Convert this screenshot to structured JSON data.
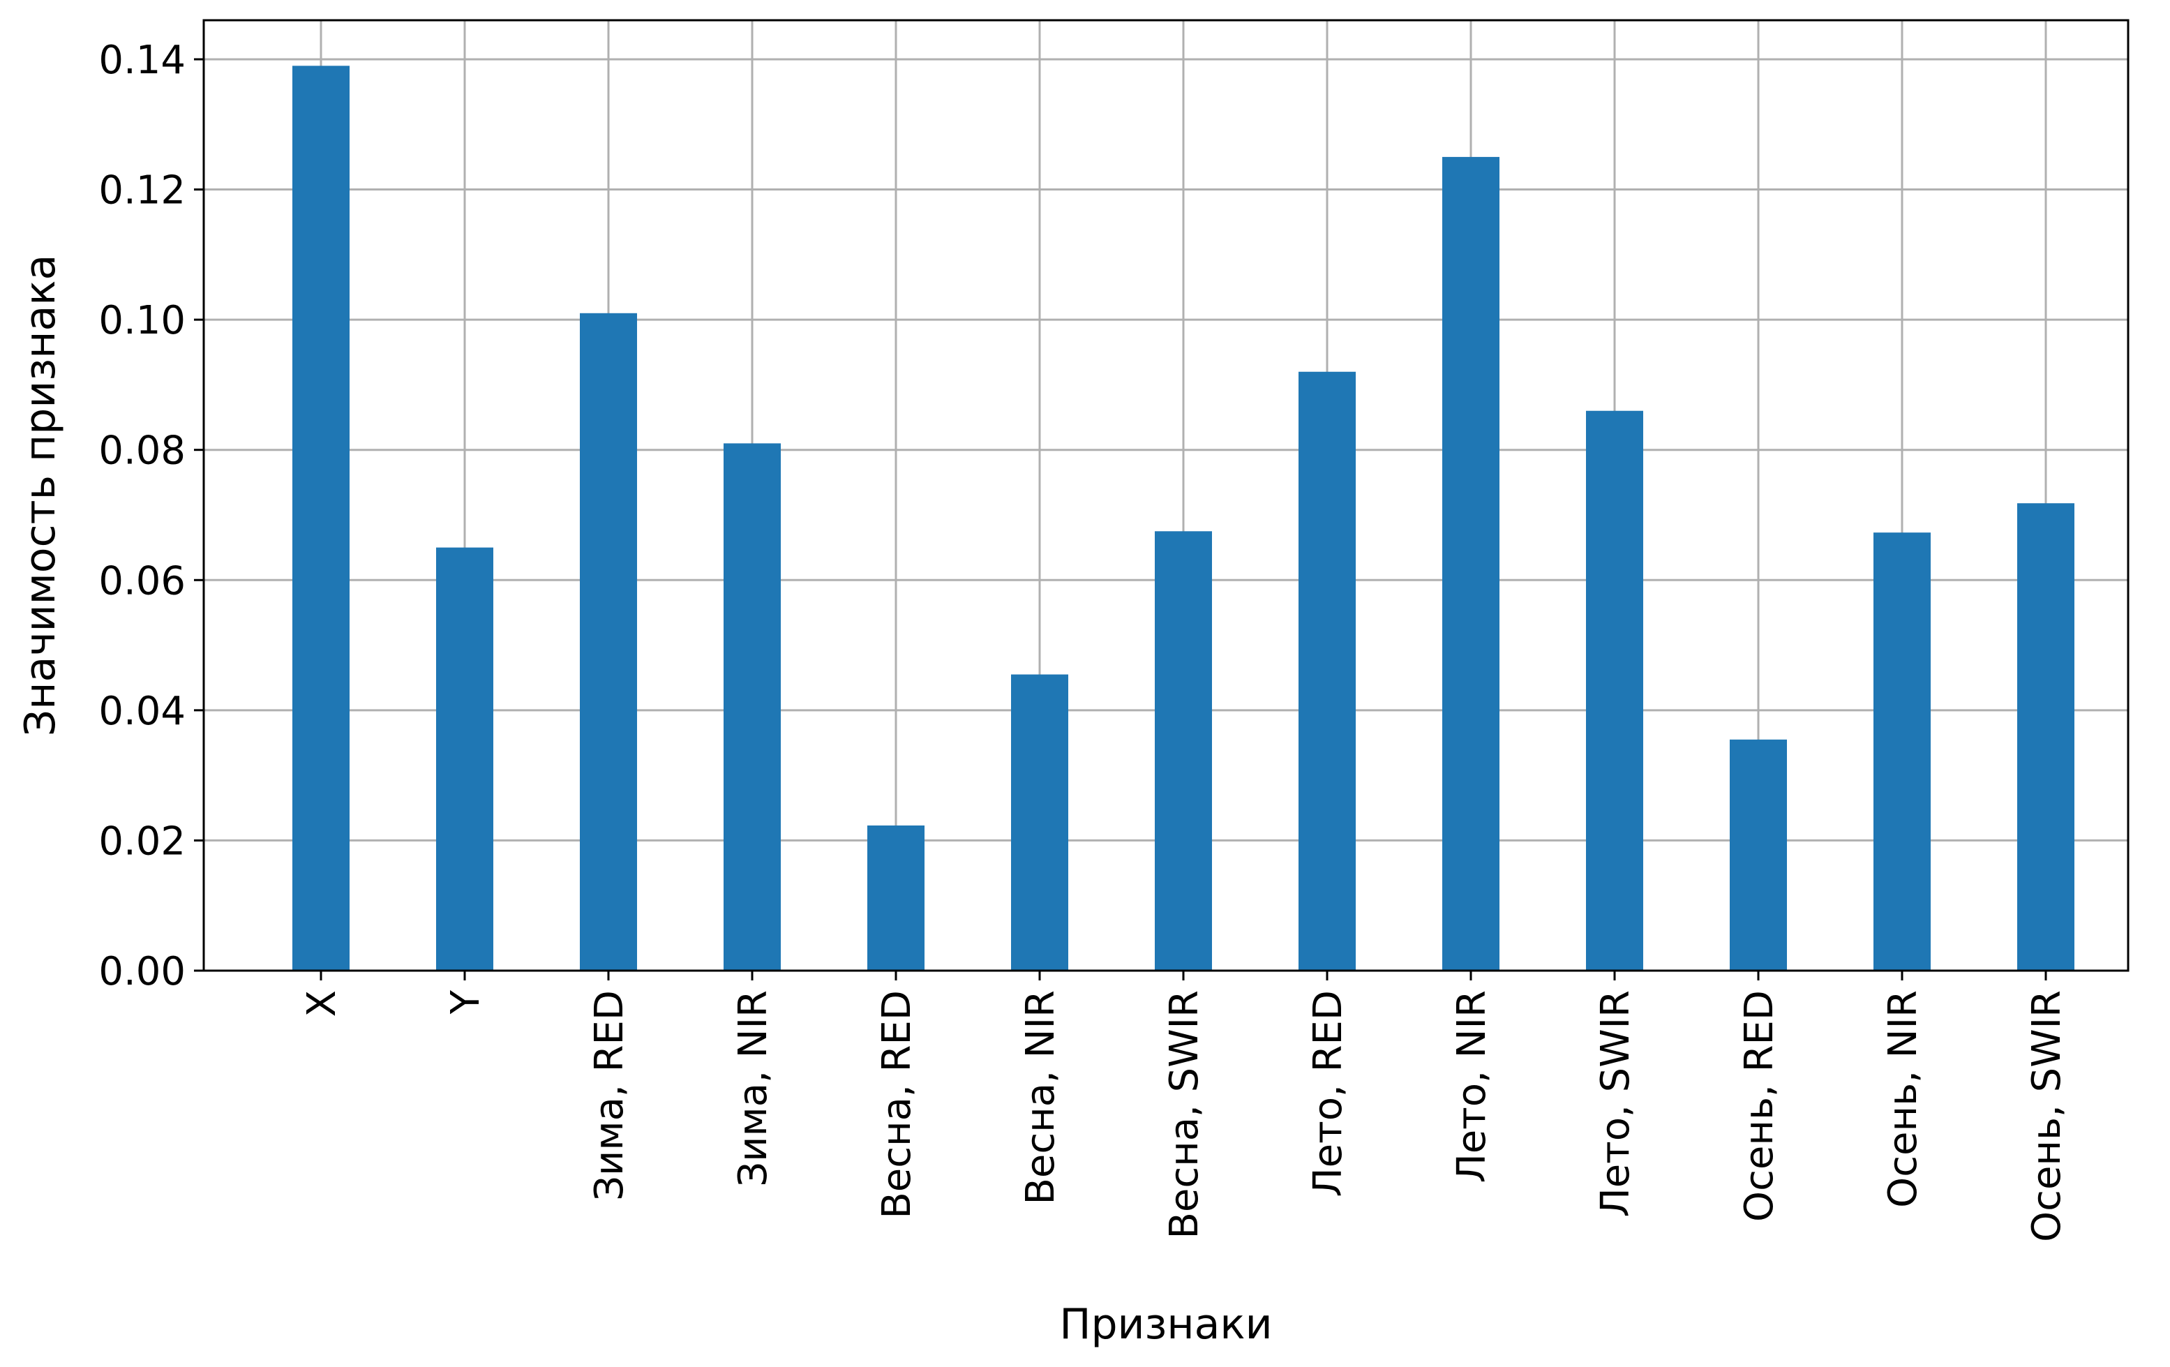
{
  "chart_data": {
    "type": "bar",
    "categories": [
      "X",
      "Y",
      "Зима, RED",
      "Зима, NIR",
      "Весна, RED",
      "Весна, NIR",
      "Весна, SWIR",
      "Лето, RED",
      "Лето, NIR",
      "Лето, SWIR",
      "Осень, RED",
      "Осень, NIR",
      "Осень, SWIR"
    ],
    "values": [
      0.139,
      0.065,
      0.101,
      0.081,
      0.0223,
      0.0455,
      0.0675,
      0.092,
      0.125,
      0.086,
      0.0355,
      0.0673,
      0.0718
    ],
    "title": "",
    "xlabel": "Признаки",
    "ylabel": "Значимость признака",
    "ylim": [
      0,
      0.146
    ],
    "yticks": [
      "0.00",
      "0.02",
      "0.04",
      "0.06",
      "0.08",
      "0.10",
      "0.12",
      "0.14"
    ],
    "grid": true,
    "bar_color": "#1f77b4"
  }
}
